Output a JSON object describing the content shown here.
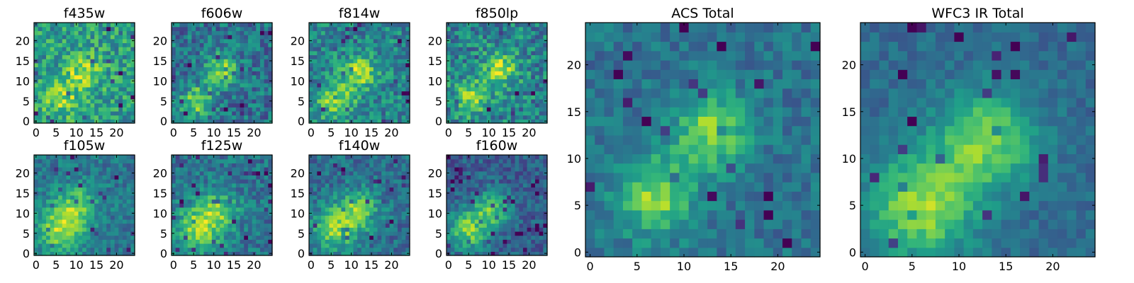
{
  "chart_data": [
    {
      "type": "heatmap",
      "title": "f435w",
      "grid": [
        25,
        25
      ],
      "xticks": [
        0,
        5,
        10,
        15,
        20
      ],
      "yticks": [
        0,
        5,
        10,
        15,
        20
      ],
      "xlim": [
        0,
        24
      ],
      "ylim": [
        0,
        24
      ],
      "colormap": "viridis",
      "blobs": [
        {
          "x": 12,
          "y": 12,
          "amp": 0.35,
          "s": 2.8
        },
        {
          "x": 6,
          "y": 6,
          "amp": 0.3,
          "s": 3.2
        }
      ],
      "base": 0.55,
      "noise": 0.22
    },
    {
      "type": "heatmap",
      "title": "f606w",
      "grid": [
        25,
        25
      ],
      "xticks": [
        0,
        5,
        10,
        15,
        20
      ],
      "yticks": [
        0,
        5,
        10,
        15,
        20
      ],
      "xlim": [
        0,
        24
      ],
      "ylim": [
        0,
        24
      ],
      "colormap": "viridis",
      "blobs": [
        {
          "x": 12,
          "y": 13,
          "amp": 0.45,
          "s": 2.6
        },
        {
          "x": 6,
          "y": 5,
          "amp": 0.45,
          "s": 2.8
        }
      ],
      "base": 0.38,
      "noise": 0.2
    },
    {
      "type": "heatmap",
      "title": "f814w",
      "grid": [
        25,
        25
      ],
      "xticks": [
        0,
        5,
        10,
        15,
        20
      ],
      "yticks": [
        0,
        5,
        10,
        15,
        20
      ],
      "xlim": [
        0,
        24
      ],
      "ylim": [
        0,
        24
      ],
      "colormap": "viridis",
      "blobs": [
        {
          "x": 12,
          "y": 12,
          "amp": 0.4,
          "s": 3
        },
        {
          "x": 6,
          "y": 5,
          "amp": 0.4,
          "s": 3.2
        }
      ],
      "base": 0.45,
      "noise": 0.2
    },
    {
      "type": "heatmap",
      "title": "f850lp",
      "grid": [
        25,
        25
      ],
      "xticks": [
        0,
        5,
        10,
        15,
        20
      ],
      "yticks": [
        0,
        5,
        10,
        15,
        20
      ],
      "xlim": [
        0,
        24
      ],
      "ylim": [
        0,
        24
      ],
      "colormap": "viridis",
      "blobs": [
        {
          "x": 13,
          "y": 13,
          "amp": 0.4,
          "s": 3
        },
        {
          "x": 6,
          "y": 6,
          "amp": 0.35,
          "s": 3.2
        }
      ],
      "base": 0.45,
      "noise": 0.22
    },
    {
      "type": "heatmap",
      "title": "f105w",
      "grid": [
        25,
        25
      ],
      "xticks": [
        0,
        5,
        10,
        15,
        20
      ],
      "yticks": [
        0,
        5,
        10,
        15,
        20
      ],
      "xlim": [
        0,
        24
      ],
      "ylim": [
        0,
        24
      ],
      "colormap": "viridis",
      "blobs": [
        {
          "x": 10,
          "y": 12,
          "amp": 0.35,
          "s": 3.5
        },
        {
          "x": 6,
          "y": 6,
          "amp": 0.45,
          "s": 4
        }
      ],
      "base": 0.4,
      "noise": 0.14
    },
    {
      "type": "heatmap",
      "title": "f125w",
      "grid": [
        25,
        25
      ],
      "xticks": [
        0,
        5,
        10,
        15,
        20
      ],
      "yticks": [
        0,
        5,
        10,
        15,
        20
      ],
      "xlim": [
        0,
        24
      ],
      "ylim": [
        0,
        24
      ],
      "colormap": "viridis",
      "blobs": [
        {
          "x": 11,
          "y": 11,
          "amp": 0.35,
          "s": 3.5
        },
        {
          "x": 6,
          "y": 6,
          "amp": 0.45,
          "s": 4
        }
      ],
      "base": 0.38,
      "noise": 0.16
    },
    {
      "type": "heatmap",
      "title": "f140w",
      "grid": [
        25,
        25
      ],
      "xticks": [
        0,
        5,
        10,
        15,
        20
      ],
      "yticks": [
        0,
        5,
        10,
        15,
        20
      ],
      "xlim": [
        0,
        24
      ],
      "ylim": [
        0,
        24
      ],
      "colormap": "viridis",
      "blobs": [
        {
          "x": 12,
          "y": 11,
          "amp": 0.4,
          "s": 3.5
        },
        {
          "x": 6,
          "y": 6,
          "amp": 0.45,
          "s": 3.8
        }
      ],
      "base": 0.36,
      "noise": 0.15
    },
    {
      "type": "heatmap",
      "title": "f160w",
      "grid": [
        25,
        25
      ],
      "xticks": [
        0,
        5,
        10,
        15,
        20
      ],
      "yticks": [
        0,
        5,
        10,
        15,
        20
      ],
      "xlim": [
        0,
        24
      ],
      "ylim": [
        0,
        24
      ],
      "colormap": "viridis",
      "blobs": [
        {
          "x": 11,
          "y": 11,
          "amp": 0.4,
          "s": 3.2
        },
        {
          "x": 5,
          "y": 6,
          "amp": 0.5,
          "s": 3.5
        }
      ],
      "base": 0.3,
      "noise": 0.14
    },
    {
      "type": "heatmap",
      "title": "ACS Total",
      "grid": [
        25,
        25
      ],
      "xticks": [
        0,
        5,
        10,
        15,
        20
      ],
      "yticks": [
        0,
        5,
        10,
        15,
        20
      ],
      "xlim": [
        0,
        24
      ],
      "ylim": [
        0,
        24
      ],
      "colormap": "viridis",
      "blobs": [
        {
          "x": 13,
          "y": 13,
          "amp": 0.45,
          "s": 2.8
        },
        {
          "x": 7,
          "y": 6,
          "amp": 0.45,
          "s": 2.8
        }
      ],
      "base": 0.38,
      "noise": 0.12
    },
    {
      "type": "heatmap",
      "title": "WFC3 IR Total",
      "grid": [
        25,
        25
      ],
      "xticks": [
        0,
        5,
        10,
        15,
        20
      ],
      "yticks": [
        0,
        5,
        10,
        15,
        20
      ],
      "xlim": [
        0,
        24
      ],
      "ylim": [
        0,
        24
      ],
      "colormap": "viridis",
      "blobs": [
        {
          "x": 13,
          "y": 12,
          "amp": 0.45,
          "s": 3.5
        },
        {
          "x": 6,
          "y": 5,
          "amp": 0.5,
          "s": 4
        }
      ],
      "base": 0.35,
      "noise": 0.09
    }
  ]
}
